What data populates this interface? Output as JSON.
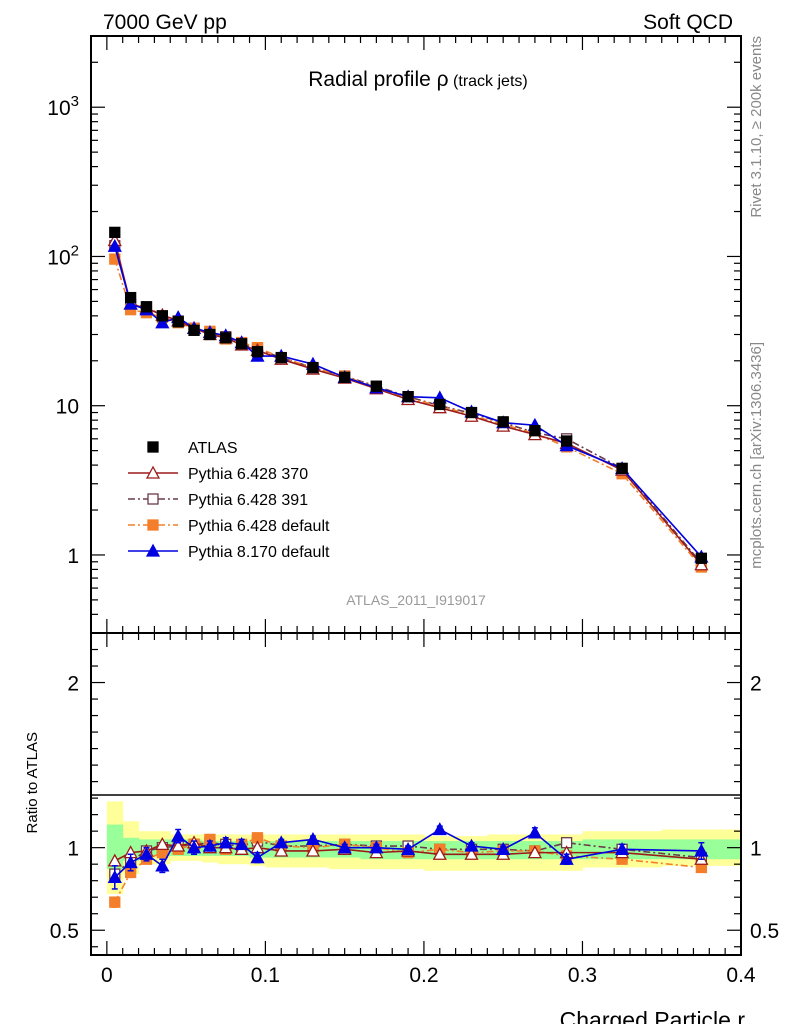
{
  "header": {
    "left": "7000 GeV pp",
    "right": "Soft QCD"
  },
  "side_labels": {
    "rivet": "Rivet 3.1.10, ≥ 200k events",
    "mcplots": "mcplots.cern.ch [arXiv:1306.3436]"
  },
  "colors": {
    "atlas": "#000000",
    "p370": "#9b1b1b",
    "p391": "#6b3b4b",
    "pdef": "#f47f2a",
    "p8": "#0000e0",
    "band_yellow": "#ffff99",
    "band_green": "#99ff99"
  },
  "chart_data": [
    {
      "type": "line",
      "title_main": "Radial profile ",
      "title_symbol": "ρ",
      "title_sub": " (track jets)",
      "watermark": "ATLAS_2011_I919017",
      "yscale": "log",
      "ylim": [
        0.3,
        3000
      ],
      "xlim": [
        -0.01,
        0.4
      ],
      "y_ticks": [
        {
          "value": 1000,
          "base": "10",
          "exp": "3"
        },
        {
          "value": 100,
          "base": "10",
          "exp": "2"
        },
        {
          "value": 10,
          "base": "10",
          "exp": ""
        },
        {
          "value": 1,
          "base": "1",
          "exp": ""
        }
      ],
      "legend_placement": "lower-left",
      "x": [
        0.005,
        0.015,
        0.025,
        0.035,
        0.045,
        0.055,
        0.065,
        0.075,
        0.085,
        0.095,
        0.11,
        0.13,
        0.15,
        0.17,
        0.19,
        0.21,
        0.23,
        0.25,
        0.27,
        0.29,
        0.325,
        0.375
      ],
      "series": [
        {
          "name": "ATLAS",
          "key": "atlas",
          "marker": "square",
          "line": "none",
          "values": [
            145,
            53,
            46,
            40,
            36.5,
            32,
            30,
            28.5,
            26,
            23,
            21,
            18,
            15.5,
            13.5,
            11.5,
            10.2,
            9.0,
            7.8,
            6.8,
            5.8,
            3.8,
            0.95
          ]
        },
        {
          "name": "Pythia 6.428 370",
          "key": "p370",
          "marker": "triangle-open",
          "line": "solid",
          "values": [
            128,
            48,
            45,
            40.5,
            37,
            33,
            30,
            28.5,
            25.5,
            23.5,
            20.5,
            17.6,
            15.3,
            13.0,
            11.0,
            9.7,
            8.5,
            7.3,
            6.4,
            5.6,
            3.7,
            0.86
          ]
        },
        {
          "name": "Pythia 6.428 391",
          "key": "p391",
          "marker": "square-open",
          "line": "dashdot",
          "values": [
            118,
            48,
            46,
            40,
            37,
            33,
            31,
            29,
            26,
            24,
            21,
            18,
            15.8,
            13.5,
            11.5,
            10.0,
            8.9,
            7.7,
            6.6,
            6.0,
            3.8,
            0.88
          ]
        },
        {
          "name": "Pythia 6.428 default",
          "key": "pdef",
          "marker": "square",
          "line": "dashdot",
          "values": [
            96,
            44,
            42,
            39,
            36,
            33,
            31.5,
            28,
            26.5,
            24.5,
            21,
            18,
            15.8,
            13.2,
            11.2,
            10.0,
            8.6,
            7.5,
            6.5,
            5.3,
            3.5,
            0.83
          ]
        },
        {
          "name": "Pythia 8.170 default",
          "key": "p8",
          "marker": "triangle",
          "line": "solid",
          "values": [
            117,
            48,
            44,
            36,
            39,
            33,
            31,
            29.5,
            26.5,
            21.5,
            21.5,
            19,
            15.5,
            13.2,
            11.5,
            11.3,
            9.1,
            7.7,
            7.4,
            5.4,
            3.8,
            0.97
          ]
        }
      ]
    },
    {
      "type": "line",
      "ylabel": "Ratio to ATLAS",
      "xlabel": "Charged Particle r",
      "ylim": [
        0.35,
        2.3
      ],
      "xlim": [
        -0.01,
        0.4
      ],
      "reference": 1,
      "y_ticks": [
        {
          "value": 2,
          "label": "2"
        },
        {
          "value": 1,
          "label": "1"
        },
        {
          "value": 0.5,
          "label": "0.5"
        }
      ],
      "x_ticks": [
        {
          "value": 0,
          "label": "0"
        },
        {
          "value": 0.1,
          "label": "0.1"
        },
        {
          "value": 0.2,
          "label": "0.2"
        },
        {
          "value": 0.3,
          "label": "0.3"
        },
        {
          "value": 0.4,
          "label": "0.4"
        }
      ],
      "x": [
        0.005,
        0.015,
        0.025,
        0.035,
        0.045,
        0.055,
        0.065,
        0.075,
        0.085,
        0.095,
        0.11,
        0.13,
        0.15,
        0.17,
        0.19,
        0.21,
        0.23,
        0.25,
        0.27,
        0.29,
        0.325,
        0.375
      ],
      "bin_edges": [
        0,
        0.01,
        0.02,
        0.03,
        0.04,
        0.05,
        0.06,
        0.07,
        0.08,
        0.09,
        0.1,
        0.12,
        0.14,
        0.16,
        0.18,
        0.2,
        0.22,
        0.24,
        0.26,
        0.28,
        0.3,
        0.35,
        0.4
      ],
      "band_yellow": [
        [
          0.72,
          1.28
        ],
        [
          0.84,
          1.16
        ],
        [
          0.9,
          1.1
        ],
        [
          0.9,
          1.1
        ],
        [
          0.92,
          1.08
        ],
        [
          0.92,
          1.08
        ],
        [
          0.91,
          1.08
        ],
        [
          0.9,
          1.08
        ],
        [
          0.9,
          1.08
        ],
        [
          0.89,
          1.08
        ],
        [
          0.88,
          1.08
        ],
        [
          0.88,
          1.08
        ],
        [
          0.87,
          1.08
        ],
        [
          0.87,
          1.08
        ],
        [
          0.87,
          1.08
        ],
        [
          0.86,
          1.07
        ],
        [
          0.86,
          1.07
        ],
        [
          0.86,
          1.08
        ],
        [
          0.86,
          1.08
        ],
        [
          0.86,
          1.08
        ],
        [
          0.88,
          1.1
        ],
        [
          0.89,
          1.11
        ]
      ],
      "band_green": [
        [
          0.87,
          1.14
        ],
        [
          0.92,
          1.06
        ],
        [
          0.94,
          1.05
        ],
        [
          0.95,
          1.05
        ],
        [
          0.95,
          1.05
        ],
        [
          0.95,
          1.05
        ],
        [
          0.95,
          1.04
        ],
        [
          0.95,
          1.04
        ],
        [
          0.95,
          1.04
        ],
        [
          0.94,
          1.04
        ],
        [
          0.94,
          1.04
        ],
        [
          0.94,
          1.04
        ],
        [
          0.94,
          1.04
        ],
        [
          0.93,
          1.04
        ],
        [
          0.93,
          1.04
        ],
        [
          0.93,
          1.04
        ],
        [
          0.93,
          1.04
        ],
        [
          0.93,
          1.04
        ],
        [
          0.93,
          1.04
        ],
        [
          0.93,
          1.04
        ],
        [
          0.93,
          1.05
        ],
        [
          0.93,
          1.05
        ]
      ],
      "series": [
        {
          "name": "Pythia 6.428 370",
          "key": "p370",
          "marker": "triangle-open",
          "line": "solid",
          "values": [
            0.92,
            0.97,
            0.98,
            1.02,
            1.01,
            1.03,
            1.0,
            1.0,
            0.99,
            1.0,
            0.98,
            0.98,
            0.99,
            0.97,
            0.98,
            0.96,
            0.96,
            0.96,
            0.97,
            0.97,
            0.97,
            0.93
          ],
          "errors": [
            0,
            0,
            0,
            0,
            0,
            0,
            0,
            0,
            0,
            0,
            0,
            0,
            0,
            0,
            0,
            0,
            0,
            0,
            0,
            0,
            0,
            0
          ]
        },
        {
          "name": "Pythia 6.428 391",
          "key": "p391",
          "marker": "square-open",
          "line": "dashdot",
          "values": [
            0.84,
            0.92,
            0.98,
            1.0,
            1.01,
            1.02,
            1.03,
            1.02,
            1.01,
            1.04,
            1.01,
            1.01,
            1.02,
            1.01,
            1.01,
            0.99,
            0.99,
            0.99,
            0.98,
            1.03,
            0.99,
            0.94
          ],
          "errors": [
            0,
            0,
            0,
            0,
            0,
            0,
            0,
            0,
            0,
            0,
            0,
            0,
            0,
            0,
            0,
            0,
            0,
            0,
            0,
            0,
            0,
            0
          ]
        },
        {
          "name": "Pythia 6.428 default",
          "key": "pdef",
          "marker": "square",
          "line": "dashdot",
          "values": [
            0.67,
            0.85,
            0.93,
            0.97,
            0.99,
            1.02,
            1.05,
            0.99,
            1.02,
            1.06,
            1.01,
            1.0,
            1.02,
            1.0,
            0.97,
            0.99,
            0.97,
            0.98,
            0.98,
            0.95,
            0.93,
            0.88
          ],
          "errors": [
            0.03,
            0.03,
            0.02,
            0,
            0,
            0,
            0,
            0,
            0,
            0,
            0,
            0,
            0,
            0,
            0,
            0,
            0,
            0,
            0,
            0,
            0,
            0
          ]
        },
        {
          "name": "Pythia 8.170 default",
          "key": "p8",
          "marker": "triangle",
          "line": "solid",
          "values": [
            0.82,
            0.91,
            0.96,
            0.89,
            1.07,
            1.0,
            1.01,
            1.03,
            1.02,
            0.94,
            1.03,
            1.05,
            1.0,
            1.0,
            0.99,
            1.11,
            1.01,
            0.99,
            1.09,
            0.93,
            0.99,
            0.98
          ],
          "errors": [
            0.07,
            0.05,
            0.04,
            0.04,
            0.04,
            0.04,
            0.03,
            0.03,
            0.03,
            0.03,
            0.02,
            0.02,
            0.02,
            0.02,
            0.02,
            0.02,
            0.02,
            0.02,
            0.03,
            0.03,
            0.03,
            0.05
          ]
        }
      ]
    }
  ]
}
